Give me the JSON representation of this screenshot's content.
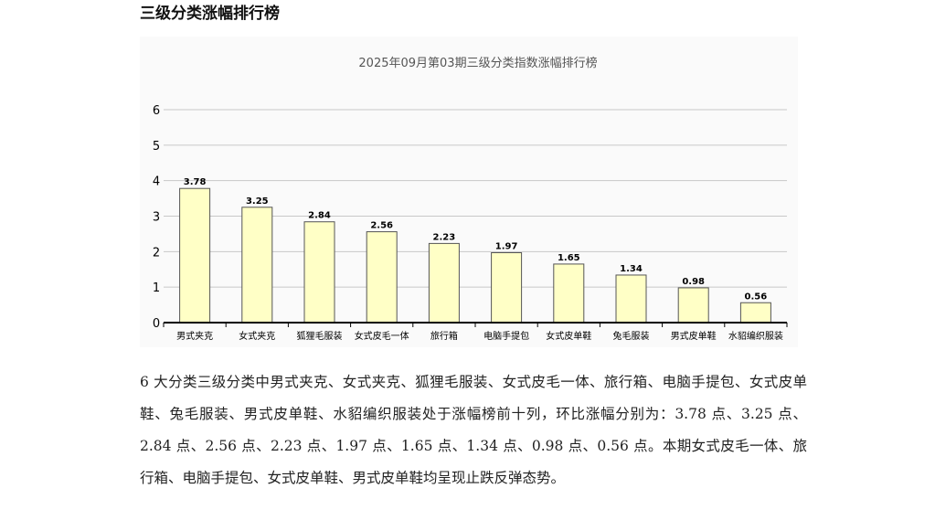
{
  "section": {
    "title": "三级分类涨幅排行榜"
  },
  "chart_data": {
    "type": "bar",
    "title": "2025年09月第03期三级分类指数涨幅排行榜",
    "categories": [
      "男式夹克",
      "女式夹克",
      "狐狸毛服装",
      "女式皮毛一体",
      "旅行箱",
      "电脑手提包",
      "女式皮单鞋",
      "兔毛服装",
      "男式皮单鞋",
      "水貂编织服装"
    ],
    "values": [
      3.78,
      3.25,
      2.84,
      2.56,
      2.23,
      1.97,
      1.65,
      1.34,
      0.98,
      0.56
    ],
    "value_labels": [
      "3.78",
      "3.25",
      "2.84",
      "2.56",
      "2.23",
      "1.97",
      "1.65",
      "1.34",
      "0.98",
      "0.56"
    ],
    "yticks": [
      "0",
      "1",
      "2",
      "3",
      "4",
      "5",
      "6"
    ],
    "ylim": [
      0,
      6
    ],
    "xlabel": "",
    "ylabel": "",
    "grid": true,
    "legend": "none",
    "colors": {
      "bar_fill": "#ffffc6",
      "bar_stroke": "#555555",
      "grid": "#c8c8c8",
      "axis": "#000000"
    }
  },
  "paragraph": {
    "text": "6 大分类三级分类中男式夹克、女式夹克、狐狸毛服装、女式皮毛一体、旅行箱、电脑手提包、女式皮单鞋、兔毛服装、男式皮单鞋、水貂编织服装处于涨幅榜前十列，环比涨幅分别为：3.78 点、3.25 点、2.84 点、2.56 点、2.23 点、1.97 点、1.65 点、1.34 点、0.98 点、0.56 点。本期女式皮毛一体、旅行箱、电脑手提包、女式皮单鞋、男式皮单鞋均呈现止跌反弹态势。"
  }
}
